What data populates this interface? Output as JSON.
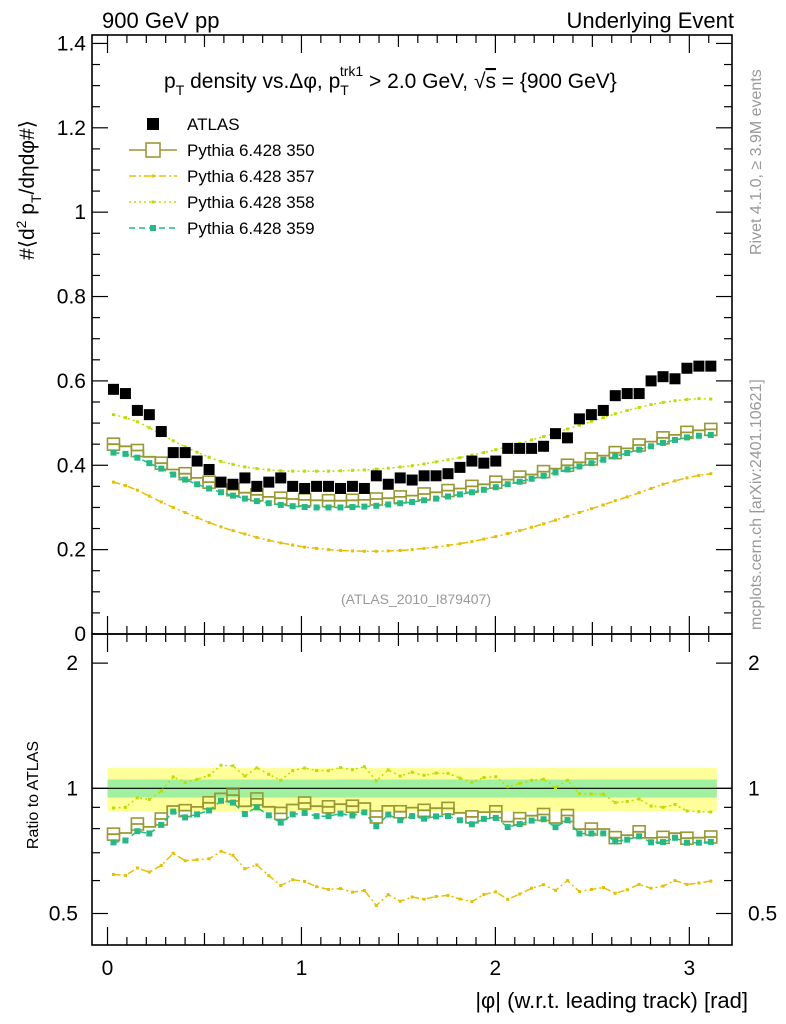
{
  "header": {
    "left": "900 GeV pp",
    "right": "Underlying Event"
  },
  "side_texts": {
    "rivet": "Rivet 4.1.0, ≥ 3.9M events",
    "mcplots": "mcplots.cern.ch [arXiv:2401.10621]"
  },
  "chart_data": {
    "type": "scatter",
    "title_parts": {
      "p": "p",
      "T": "T",
      "mid": " density vs.Δφ, p",
      "trk": "trk1",
      "cond": " > 2.0 GeV, ",
      "sqrt": "√",
      "s": "s",
      "energy": " = {900 GeV}"
    },
    "ylabel_parts": {
      "a": "#⟨d",
      "two": "2",
      "b": " p",
      "T": "T",
      "c": "/dηdφ#⟩"
    },
    "ratio_ylabel": "Ratio to ATLAS",
    "xlabel": "|φ| (w.r.t. leading track) [rad]",
    "analysis_id": "(ATLAS_2010_I879407)",
    "ylim": [
      0,
      1.42
    ],
    "ratio_ylim": [
      0.42,
      2.35
    ],
    "xlim": [
      -0.08,
      3.22
    ],
    "main_yticks": [
      0,
      0.2,
      0.4,
      0.6,
      0.8,
      1,
      1.2,
      1.4
    ],
    "main_ytick_labels": [
      "0",
      "0.2",
      "0.4",
      "0.6",
      "0.8",
      "1",
      "1.2",
      "1.4"
    ],
    "ratio_yticks": [
      0.5,
      1,
      2
    ],
    "ratio_ytick_labels": [
      "0.5",
      "1",
      "2"
    ],
    "xticks": [
      0,
      1,
      2,
      3
    ],
    "xtick_labels": [
      "0",
      "1",
      "2",
      "3"
    ],
    "ref_band": {
      "inner": 0.05,
      "outer": 0.12,
      "inner_color": "#a0f0a0",
      "outer_color": "#ffff99"
    },
    "series": [
      {
        "name": "ATLAS",
        "color": "#000000",
        "style": "data",
        "values": [
          0.58,
          0.57,
          0.53,
          0.52,
          0.48,
          0.43,
          0.43,
          0.41,
          0.39,
          0.36,
          0.355,
          0.37,
          0.35,
          0.36,
          0.37,
          0.35,
          0.345,
          0.35,
          0.35,
          0.345,
          0.35,
          0.345,
          0.375,
          0.355,
          0.37,
          0.365,
          0.375,
          0.375,
          0.38,
          0.395,
          0.41,
          0.405,
          0.41,
          0.44,
          0.44,
          0.44,
          0.445,
          0.475,
          0.465,
          0.51,
          0.52,
          0.53,
          0.565,
          0.57,
          0.57,
          0.6,
          0.61,
          0.605,
          0.63,
          0.635,
          0.635
        ]
      },
      {
        "name": "Pythia 6.428 350",
        "color": "#999933",
        "style": "solid-open-square",
        "values": [
          0.45,
          0.445,
          0.435,
          0.42,
          0.405,
          0.39,
          0.38,
          0.37,
          0.36,
          0.35,
          0.342,
          0.335,
          0.33,
          0.325,
          0.322,
          0.32,
          0.318,
          0.317,
          0.316,
          0.316,
          0.317,
          0.318,
          0.32,
          0.322,
          0.325,
          0.328,
          0.332,
          0.336,
          0.34,
          0.345,
          0.35,
          0.355,
          0.36,
          0.366,
          0.372,
          0.378,
          0.385,
          0.392,
          0.4,
          0.407,
          0.415,
          0.423,
          0.43,
          0.44,
          0.448,
          0.456,
          0.465,
          0.472,
          0.478,
          0.483,
          0.485
        ]
      },
      {
        "name": "Pythia 6.428 357",
        "color": "#e6c000",
        "style": "dashdot",
        "values": [
          0.36,
          0.352,
          0.341,
          0.327,
          0.313,
          0.3,
          0.288,
          0.276,
          0.264,
          0.254,
          0.245,
          0.237,
          0.229,
          0.222,
          0.216,
          0.211,
          0.206,
          0.203,
          0.2,
          0.198,
          0.197,
          0.196,
          0.196,
          0.197,
          0.198,
          0.2,
          0.203,
          0.206,
          0.21,
          0.214,
          0.219,
          0.225,
          0.231,
          0.238,
          0.245,
          0.253,
          0.261,
          0.27,
          0.279,
          0.288,
          0.297,
          0.306,
          0.316,
          0.325,
          0.335,
          0.345,
          0.355,
          0.363,
          0.37,
          0.376,
          0.38
        ]
      },
      {
        "name": "Pythia 6.428 358",
        "color": "#bbdd00",
        "style": "dotted",
        "values": [
          0.52,
          0.513,
          0.503,
          0.489,
          0.473,
          0.458,
          0.444,
          0.431,
          0.419,
          0.409,
          0.402,
          0.396,
          0.392,
          0.389,
          0.387,
          0.386,
          0.386,
          0.386,
          0.386,
          0.387,
          0.388,
          0.389,
          0.391,
          0.393,
          0.396,
          0.399,
          0.403,
          0.408,
          0.413,
          0.418,
          0.424,
          0.43,
          0.437,
          0.444,
          0.452,
          0.46,
          0.468,
          0.477,
          0.486,
          0.495,
          0.504,
          0.513,
          0.522,
          0.53,
          0.537,
          0.544,
          0.549,
          0.553,
          0.556,
          0.558,
          0.557
        ]
      },
      {
        "name": "Pythia 6.428 359",
        "color": "#22bb88",
        "style": "dashed-square",
        "values": [
          0.43,
          0.427,
          0.418,
          0.405,
          0.392,
          0.378,
          0.366,
          0.355,
          0.345,
          0.336,
          0.328,
          0.321,
          0.315,
          0.31,
          0.306,
          0.303,
          0.301,
          0.3,
          0.3,
          0.3,
          0.301,
          0.302,
          0.304,
          0.307,
          0.31,
          0.313,
          0.317,
          0.321,
          0.326,
          0.331,
          0.336,
          0.342,
          0.348,
          0.355,
          0.361,
          0.368,
          0.375,
          0.383,
          0.39,
          0.397,
          0.405,
          0.413,
          0.421,
          0.429,
          0.437,
          0.445,
          0.453,
          0.46,
          0.466,
          0.47,
          0.472
        ]
      }
    ]
  }
}
